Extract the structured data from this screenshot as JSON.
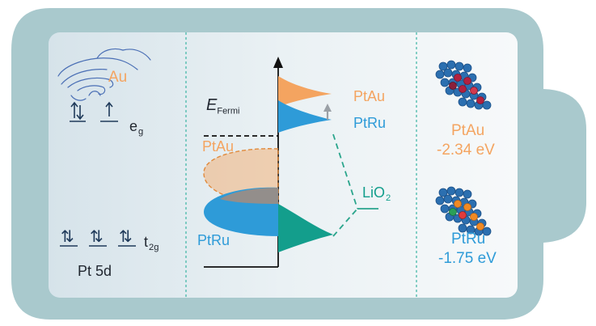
{
  "left_panel": {
    "au_label": "Au",
    "eg_orbital": {
      "symbol": "e",
      "subscript": "g"
    },
    "t2g_orbital": {
      "symbol": "t",
      "subscript": "2g"
    },
    "pt5d_label": "Pt 5d",
    "paired_arrows": "⇅",
    "single_arrow": "↑"
  },
  "center_panel": {
    "fermi_symbol": "E",
    "fermi_subscript": "Fermi",
    "ptau_upper_label": "PtAu",
    "ptru_upper_label": "PtRu",
    "ptau_lower_label": "PtAu",
    "ptru_lower_label": "PtRu",
    "lio2_label": "LiO",
    "lio2_subscript": "2"
  },
  "right_panel": {
    "ptau": {
      "name": "PtAu",
      "energy": "-2.34 eV"
    },
    "ptru": {
      "name": "PtRu",
      "energy": "-1.75 eV"
    }
  },
  "colors": {
    "battery_fill": "#a9c9cd",
    "panel_fill": "#e9f0f3",
    "orange": "#f4a460",
    "blue": "#2e9bd8",
    "teal": "#139e8c",
    "dash": "#2aa58c"
  }
}
